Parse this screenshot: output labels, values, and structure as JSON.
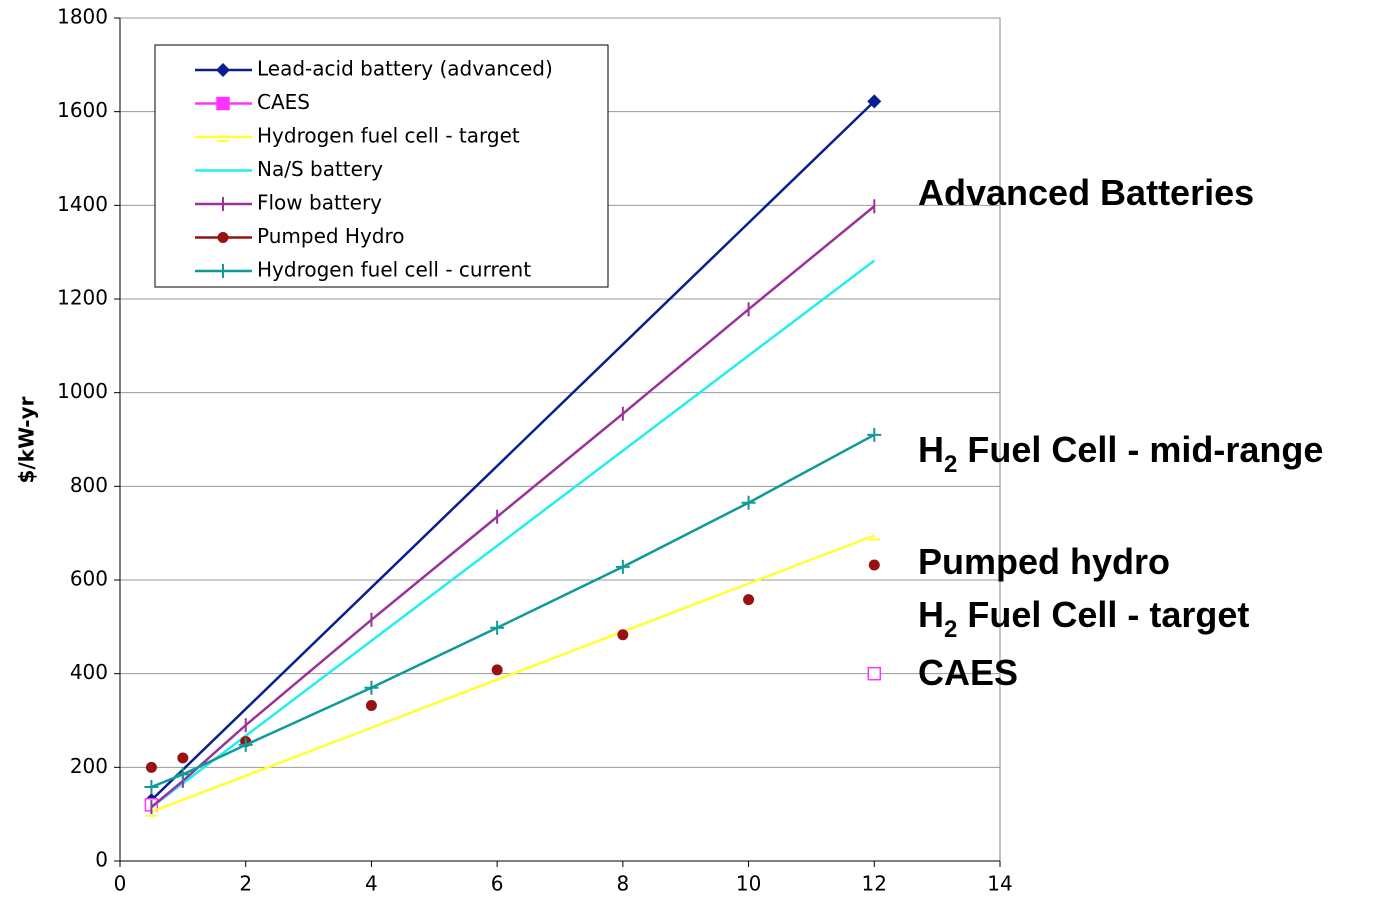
{
  "chart_data": {
    "type": "line",
    "y_label": "$/kW-yr",
    "xlim": [
      0,
      14
    ],
    "xticks": [
      0,
      2,
      4,
      6,
      8,
      10,
      12,
      14
    ],
    "ylim": [
      0,
      1800
    ],
    "yticks": [
      0,
      200,
      400,
      600,
      800,
      1000,
      1200,
      1400,
      1600,
      1800
    ],
    "grid": true,
    "legend": "top-left",
    "series": [
      {
        "name": "Lead-acid battery (advanced)",
        "color": "#0a1f8f",
        "marker": "diamond",
        "line": true,
        "x": [
          0.5,
          12
        ],
        "values": [
          130,
          1622
        ]
      },
      {
        "name": "CAES",
        "color": "#ff33ff",
        "marker": "square",
        "line": false,
        "x": [
          0.5,
          12
        ],
        "values": [
          120,
          400
        ]
      },
      {
        "name": "Hydrogen fuel cell - target",
        "color": "#ffff33",
        "marker": "dash",
        "line": true,
        "x": [
          0.5,
          12
        ],
        "values": [
          105,
          695
        ]
      },
      {
        "name": "Na/S battery",
        "color": "#22eeee",
        "marker": "none",
        "line": true,
        "x": [
          0.5,
          12
        ],
        "values": [
          115,
          1282
        ]
      },
      {
        "name": "Flow battery",
        "color": "#993399",
        "marker": "vtick",
        "line": true,
        "x": [
          0.5,
          1,
          2,
          4,
          6,
          8,
          10,
          12
        ],
        "values": [
          115,
          171,
          290,
          515,
          735,
          955,
          1178,
          1398
        ]
      },
      {
        "name": "Pumped Hydro",
        "color": "#991111",
        "marker": "circle",
        "line": false,
        "x": [
          0.5,
          1,
          2,
          4,
          6,
          8,
          10,
          12
        ],
        "values": [
          200,
          220,
          255,
          332,
          408,
          483,
          558,
          632
        ]
      },
      {
        "name": "Hydrogen fuel cell - current",
        "color": "#119999",
        "marker": "plus",
        "line": true,
        "x": [
          0.5,
          1,
          2,
          4,
          6,
          8,
          10,
          12
        ],
        "values": [
          158,
          185,
          248,
          370,
          498,
          628,
          765,
          910
        ]
      }
    ],
    "annotations": [
      {
        "parts": [
          "Advanced Batteries"
        ]
      },
      {
        "parts": [
          "H",
          "2",
          " Fuel Cell - mid-range"
        ]
      },
      {
        "parts": [
          "Pumped hydro"
        ]
      },
      {
        "parts": [
          "H",
          "2",
          " Fuel Cell - target"
        ]
      },
      {
        "parts": [
          "CAES"
        ]
      }
    ]
  }
}
